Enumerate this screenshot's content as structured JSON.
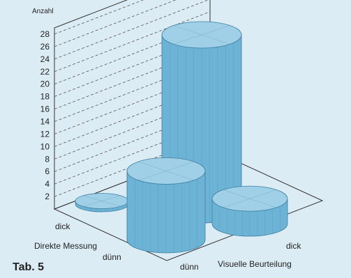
{
  "chart_data": {
    "type": "bar",
    "variant": "3d-cylinder",
    "title": "",
    "zlabel": "Anzahl",
    "ylabel": "Direkte Messung",
    "xlabel": "Visuelle Beurteilung",
    "x_categories": [
      "dünn",
      "dick"
    ],
    "y_categories": [
      "dick",
      "dünn"
    ],
    "z_ticks": [
      2,
      4,
      6,
      8,
      10,
      12,
      14,
      16,
      18,
      20,
      22,
      24,
      26,
      28
    ],
    "zlim": [
      0,
      29
    ],
    "grid": true,
    "bars": [
      {
        "visual": "dünn",
        "direct": "dick",
        "value": 0.5
      },
      {
        "visual": "dünn",
        "direct": "dünn",
        "value": 11
      },
      {
        "visual": "dick",
        "direct": "dick",
        "value": 28
      },
      {
        "visual": "dick",
        "direct": "dünn",
        "value": 4
      }
    ],
    "colors": {
      "background": "#dcecf4",
      "cylinder_side": "#6cb3d6",
      "cylinder_top": "#9fd0e8",
      "cylinder_edge": "#3e7fa0",
      "grid": "#555555"
    }
  },
  "caption": "Tab. 5"
}
